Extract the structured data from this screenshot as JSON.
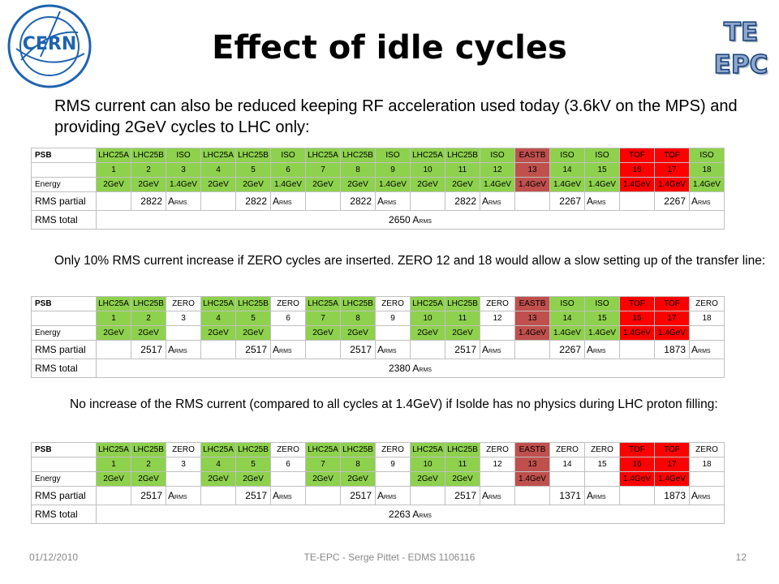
{
  "header": {
    "logo_text": "CERN",
    "title": "Effect of idle cycles",
    "badge_line1": "TE",
    "badge_line2": "EPC"
  },
  "colors": {
    "green": "#8ed14d",
    "dark_red": "#c0504d",
    "red": "#ff0000",
    "logo_blue": "#1e63ae"
  },
  "paragraph1": "RMS current can also be reduced keeping RF acceleration used today (3.6kV on the MPS) and providing 2GeV cycles to LHC only:",
  "paragraph2": "Only 10% RMS current increase if ZERO cycles are inserted. ZERO 12 and 18 would allow a slow setting up of the transfer line:",
  "paragraph3": "No increase of the RMS current (compared to all cycles at 1.4GeV) if Isolde has no physics during LHC proton filling:",
  "tables": [
    {
      "row_labels": {
        "psb": "PSB",
        "energy": "Energy",
        "rms_partial": "RMS partial",
        "rms_total": "RMS total"
      },
      "cycles": [
        "LHC25A",
        "LHC25B",
        "ISO",
        "LHC25A",
        "LHC25B",
        "ISO",
        "LHC25A",
        "LHC25B",
        "ISO",
        "LHC25A",
        "LHC25B",
        "ISO",
        "EASTB",
        "ISO",
        "ISO",
        "TOF",
        "TOF",
        "ISO"
      ],
      "numbers": [
        "1",
        "2",
        "3",
        "4",
        "5",
        "6",
        "7",
        "8",
        "9",
        "10",
        "11",
        "12",
        "13",
        "14",
        "15",
        "16",
        "17",
        "18"
      ],
      "energies": [
        "2GeV",
        "2GeV",
        "1.4GeV",
        "2GeV",
        "2GeV",
        "1.4GeV",
        "2GeV",
        "2GeV",
        "1.4GeV",
        "2GeV",
        "2GeV",
        "1.4GeV",
        "1.4GeV",
        "1.4GeV",
        "1.4GeV",
        "1.4GeV",
        "1.4GeV",
        "1.4GeV"
      ],
      "colors": [
        "g",
        "g",
        "g",
        "g",
        "g",
        "g",
        "g",
        "g",
        "g",
        "g",
        "g",
        "g",
        "r",
        "g",
        "g",
        "f",
        "f",
        "g"
      ],
      "partials": [
        "2822",
        "2822",
        "2822",
        "2822",
        "2267",
        "2267"
      ],
      "unit": "A",
      "unit_sub": "RMS",
      "total": "2650"
    },
    {
      "row_labels": {
        "psb": "PSB",
        "energy": "Energy",
        "rms_partial": "RMS partial",
        "rms_total": "RMS total"
      },
      "cycles": [
        "LHC25A",
        "LHC25B",
        "ZERO",
        "LHC25A",
        "LHC25B",
        "ZERO",
        "LHC25A",
        "LHC25B",
        "ZERO",
        "LHC25A",
        "LHC25B",
        "ZERO",
        "EASTB",
        "ISO",
        "ISO",
        "TOF",
        "TOF",
        "ZERO"
      ],
      "numbers": [
        "1",
        "2",
        "3",
        "4",
        "5",
        "6",
        "7",
        "8",
        "9",
        "10",
        "11",
        "12",
        "13",
        "14",
        "15",
        "16",
        "17",
        "18"
      ],
      "energies": [
        "2GeV",
        "2GeV",
        "",
        "2GeV",
        "2GeV",
        "",
        "2GeV",
        "2GeV",
        "",
        "2GeV",
        "2GeV",
        "",
        "1.4GeV",
        "1.4GeV",
        "1.4GeV",
        "1.4GeV",
        "1.4GeV",
        ""
      ],
      "colors": [
        "g",
        "g",
        "w",
        "g",
        "g",
        "w",
        "g",
        "g",
        "w",
        "g",
        "g",
        "w",
        "r",
        "g",
        "g",
        "f",
        "f",
        "w"
      ],
      "partials": [
        "2517",
        "2517",
        "2517",
        "2517",
        "2267",
        "1873"
      ],
      "unit": "A",
      "unit_sub": "RMS",
      "total": "2380"
    },
    {
      "row_labels": {
        "psb": "PSB",
        "energy": "Energy",
        "rms_partial": "RMS partial",
        "rms_total": "RMS total"
      },
      "cycles": [
        "LHC25A",
        "LHC25B",
        "ZERO",
        "LHC25A",
        "LHC25B",
        "ZERO",
        "LHC25A",
        "LHC25B",
        "ZERO",
        "LHC25A",
        "LHC25B",
        "ZERO",
        "EASTB",
        "ZERO",
        "ZERO",
        "TOF",
        "TOF",
        "ZERO"
      ],
      "numbers": [
        "1",
        "2",
        "3",
        "4",
        "5",
        "6",
        "7",
        "8",
        "9",
        "10",
        "11",
        "12",
        "13",
        "14",
        "15",
        "16",
        "17",
        "18"
      ],
      "energies": [
        "2GeV",
        "2GeV",
        "",
        "2GeV",
        "2GeV",
        "",
        "2GeV",
        "2GeV",
        "",
        "2GeV",
        "2GeV",
        "",
        "1.4GeV",
        "",
        "",
        "1.4GeV",
        "1.4GeV",
        ""
      ],
      "colors": [
        "g",
        "g",
        "w",
        "g",
        "g",
        "w",
        "g",
        "g",
        "w",
        "g",
        "g",
        "w",
        "r",
        "w",
        "w",
        "f",
        "f",
        "w"
      ],
      "partials": [
        "2517",
        "2517",
        "2517",
        "2517",
        "1371",
        "1873"
      ],
      "unit": "A",
      "unit_sub": "RMS",
      "total": "2263"
    }
  ],
  "footer": {
    "date": "01/12/2010",
    "center": "TE-EPC - Serge Pittet - EDMS 1106116",
    "page": "12"
  }
}
